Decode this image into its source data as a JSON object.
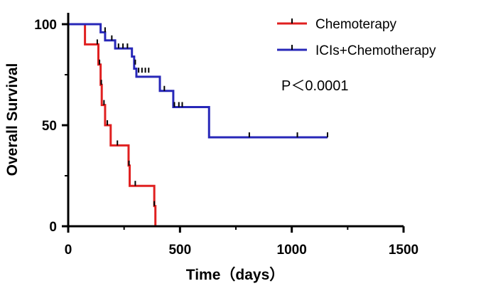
{
  "chart_data": {
    "type": "line",
    "subtype": "kaplan-meier",
    "title": "",
    "xlabel": "Time（days）",
    "ylabel": "Overall Survival",
    "xlim": [
      0,
      1500
    ],
    "ylim": [
      0,
      100
    ],
    "xticks": [
      0,
      500,
      1000,
      1500
    ],
    "yticks": [
      0,
      50,
      100
    ],
    "xtick_labels": [
      "0",
      "500",
      "1000",
      "1500"
    ],
    "ytick_labels": [
      "0",
      "50",
      "100"
    ],
    "legend_position": "top-right",
    "annotation": "P＜0.0001",
    "series": [
      {
        "name": "Chemoterapy",
        "color": "#e02020",
        "steps": [
          [
            0,
            100
          ],
          [
            75,
            90
          ],
          [
            135,
            80
          ],
          [
            145,
            70
          ],
          [
            150,
            60
          ],
          [
            165,
            50
          ],
          [
            190,
            40
          ],
          [
            270,
            30
          ],
          [
            275,
            20
          ],
          [
            385,
            10
          ],
          [
            390,
            0
          ]
        ],
        "end_x": 390,
        "censors": [
          [
            130,
            90
          ],
          [
            140,
            80
          ],
          [
            148,
            70
          ],
          [
            160,
            60
          ],
          [
            175,
            50
          ],
          [
            220,
            40
          ],
          [
            272,
            30
          ],
          [
            300,
            20
          ],
          [
            385,
            10
          ]
        ]
      },
      {
        "name": "ICIs+Chemotherapy",
        "color": "#2727b8",
        "steps": [
          [
            0,
            100
          ],
          [
            145,
            96
          ],
          [
            165,
            92
          ],
          [
            210,
            88
          ],
          [
            285,
            84
          ],
          [
            295,
            78
          ],
          [
            305,
            74
          ],
          [
            410,
            67
          ],
          [
            470,
            59
          ],
          [
            630,
            44
          ]
        ],
        "end_x": 1160,
        "censors": [
          [
            165,
            96
          ],
          [
            195,
            92
          ],
          [
            225,
            88
          ],
          [
            245,
            88
          ],
          [
            265,
            88
          ],
          [
            300,
            80
          ],
          [
            315,
            76
          ],
          [
            330,
            76
          ],
          [
            345,
            76
          ],
          [
            360,
            76
          ],
          [
            430,
            67
          ],
          [
            475,
            59
          ],
          [
            495,
            59
          ],
          [
            510,
            59
          ],
          [
            810,
            44
          ],
          [
            1025,
            44
          ],
          [
            1160,
            44
          ]
        ]
      }
    ]
  }
}
